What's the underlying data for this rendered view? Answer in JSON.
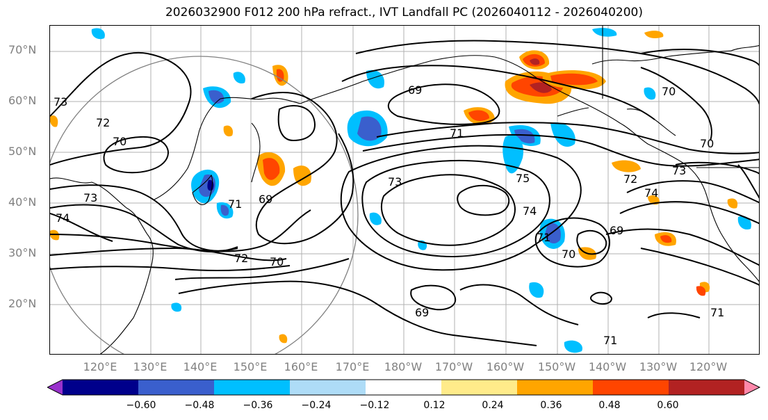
{
  "title": "2026032900 F012 200 hPa refract., IVT Landfall PC (2026040112 - 2026040200)",
  "lat_labels": [
    "70°N",
    "60°N",
    "50°N",
    "40°N",
    "30°N",
    "20°N"
  ],
  "lon_labels": [
    "120°E",
    "130°E",
    "140°E",
    "150°E",
    "160°E",
    "170°E",
    "180°W",
    "170°W",
    "160°W",
    "150°W",
    "140°W",
    "130°W",
    "120°W"
  ],
  "contour_labels": [
    "72",
    "70",
    "73",
    "74",
    "69",
    "71",
    "72",
    "70",
    "69",
    "73",
    "69",
    "71",
    "75",
    "74",
    "71",
    "70",
    "69",
    "70",
    "72",
    "74",
    "73",
    "70",
    "71",
    "71",
    "73"
  ],
  "colorbar": {
    "ticks": [
      "−0.60",
      "−0.48",
      "−0.36",
      "−0.24",
      "−0.12",
      "0.12",
      "0.24",
      "0.36",
      "0.48",
      "0.60"
    ],
    "colors": [
      "#9932cc",
      "#00008b",
      "#3a5fcd",
      "#00bfff",
      "#aedcf7",
      "#ffffff",
      "#ffeb8a",
      "#ffa500",
      "#ff4500",
      "#b22222",
      "#ff88aa"
    ]
  },
  "colors": {
    "contour": "#000000",
    "coastline": "#000000",
    "grid": "#b0b0b0",
    "circle": "#808080",
    "axis_labels": "#808080"
  }
}
